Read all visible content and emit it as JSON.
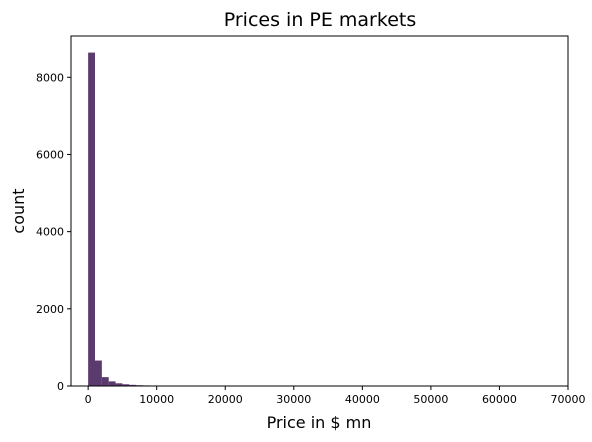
{
  "chart_data": {
    "type": "bar",
    "title": "Prices in PE markets",
    "xlabel": "Price in $ mn",
    "ylabel": "count",
    "xlim": [
      -2500,
      70000
    ],
    "ylim": [
      0,
      9070
    ],
    "bin_width": 1000,
    "bins": [
      {
        "x0": 0,
        "x1": 1000,
        "count": 8640
      },
      {
        "x0": 1000,
        "x1": 2000,
        "count": 660
      },
      {
        "x0": 2000,
        "x1": 3000,
        "count": 230
      },
      {
        "x0": 3000,
        "x1": 4000,
        "count": 120
      },
      {
        "x0": 4000,
        "x1": 5000,
        "count": 70
      },
      {
        "x0": 5000,
        "x1": 6000,
        "count": 45
      },
      {
        "x0": 6000,
        "x1": 7000,
        "count": 30
      },
      {
        "x0": 7000,
        "x1": 8000,
        "count": 20
      },
      {
        "x0": 8000,
        "x1": 9000,
        "count": 15
      },
      {
        "x0": 9000,
        "x1": 10000,
        "count": 12
      },
      {
        "x0": 10000,
        "x1": 11000,
        "count": 10
      },
      {
        "x0": 11000,
        "x1": 12000,
        "count": 6
      },
      {
        "x0": 12000,
        "x1": 13000,
        "count": 4
      },
      {
        "x0": 13000,
        "x1": 14000,
        "count": 5
      },
      {
        "x0": 14000,
        "x1": 15000,
        "count": 6
      },
      {
        "x0": 15000,
        "x1": 16000,
        "count": 3
      },
      {
        "x0": 16000,
        "x1": 17000,
        "count": 2
      },
      {
        "x0": 17000,
        "x1": 18000,
        "count": 2
      },
      {
        "x0": 18000,
        "x1": 19000,
        "count": 1
      },
      {
        "x0": 19000,
        "x1": 20000,
        "count": 1
      },
      {
        "x0": 20000,
        "x1": 21000,
        "count": 1
      },
      {
        "x0": 22000,
        "x1": 23000,
        "count": 1
      },
      {
        "x0": 25000,
        "x1": 26000,
        "count": 1
      },
      {
        "x0": 30000,
        "x1": 31000,
        "count": 1
      },
      {
        "x0": 38000,
        "x1": 39000,
        "count": 1
      },
      {
        "x0": 66000,
        "x1": 67000,
        "count": 1
      }
    ],
    "x_ticks": [
      0,
      10000,
      20000,
      30000,
      40000,
      50000,
      60000,
      70000
    ],
    "x_tick_labels": [
      "0",
      "10000",
      "20000",
      "30000",
      "40000",
      "50000",
      "60000",
      "70000"
    ],
    "y_ticks": [
      0,
      2000,
      4000,
      6000,
      8000
    ],
    "y_tick_labels": [
      "0",
      "2000",
      "4000",
      "6000",
      "8000"
    ],
    "grid": false,
    "bar_color": "#5b3a6e"
  }
}
